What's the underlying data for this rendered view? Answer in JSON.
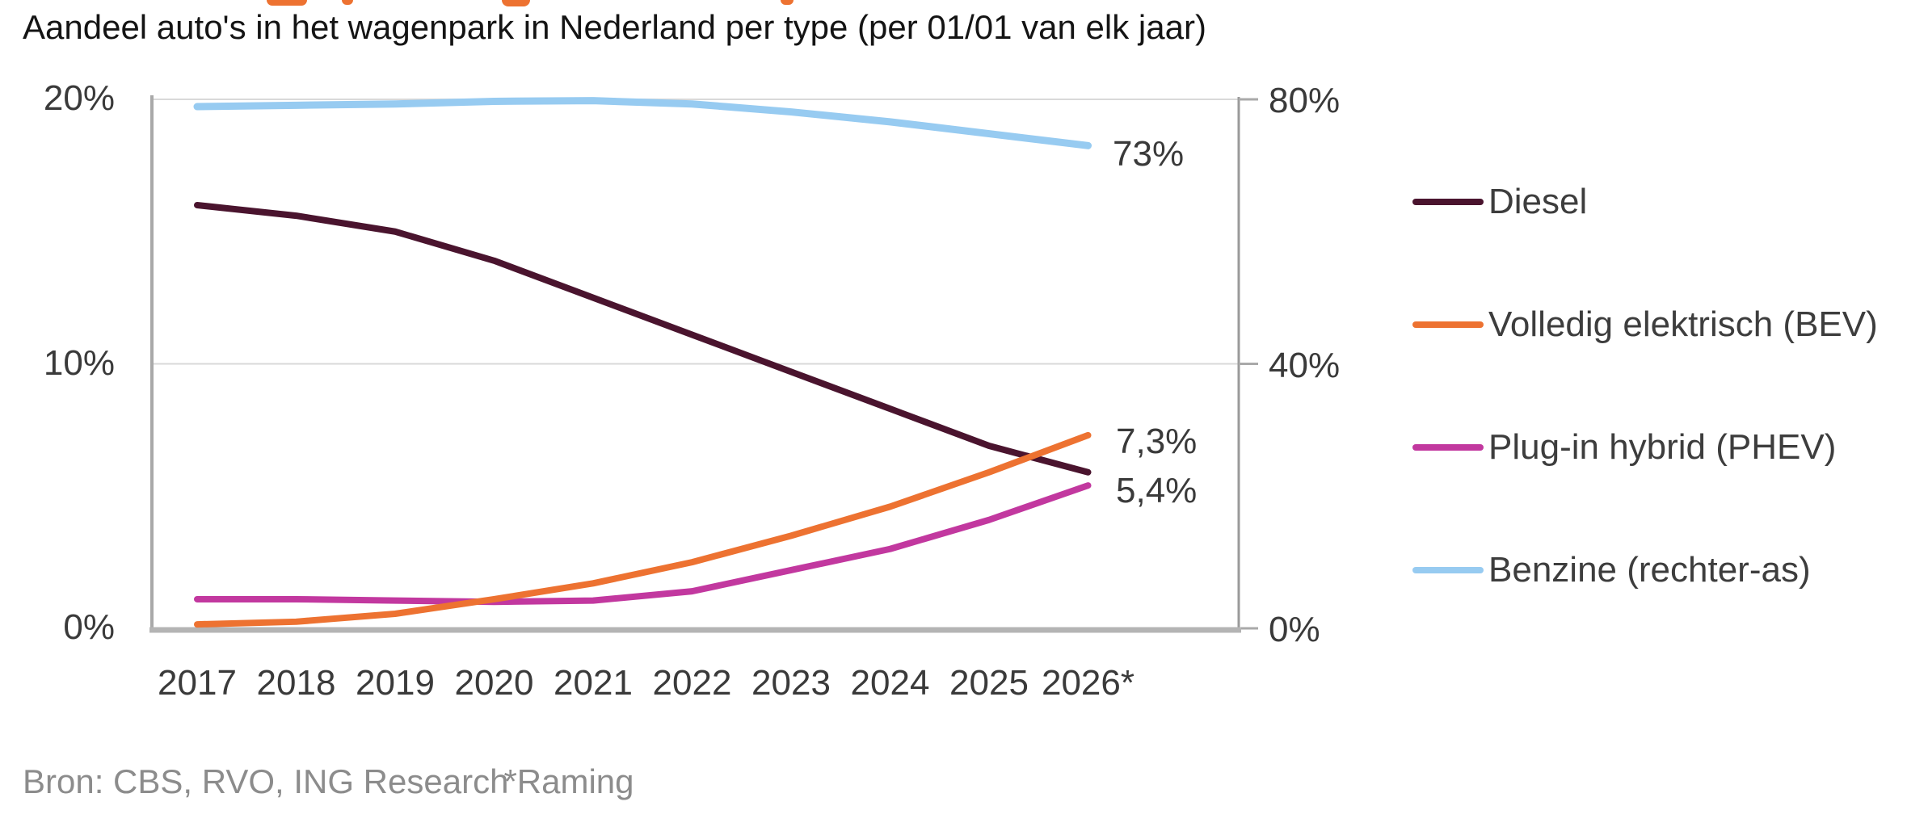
{
  "title": "Aandeel auto's in het wagenpark in Nederland per type (per 01/01 van elk jaar)",
  "source": {
    "text": "Bron: CBS, RVO, ING Research",
    "footnote": "*Raming"
  },
  "legend": {
    "items": [
      {
        "label": "Diesel",
        "color": "#4A142E"
      },
      {
        "label": "Volledig elektrisch (BEV)",
        "color": "#ED7231"
      },
      {
        "label": "Plug-in hybrid (PHEV)",
        "color": "#C2389F"
      },
      {
        "label": "Benzine (rechter-as)",
        "color": "#97CBF1"
      }
    ]
  },
  "annotations": {
    "benzine": "73%",
    "bev": "7,3%",
    "phev": "5,4%"
  },
  "chart_data": {
    "type": "line",
    "title": "Aandeel auto's in het wagenpark in Nederland per type (per 01/01 van elk jaar)",
    "x": [
      "2017",
      "2018",
      "2019",
      "2020",
      "2021",
      "2022",
      "2023",
      "2024",
      "2025",
      "2026*"
    ],
    "left_axis": {
      "min": 0,
      "max": 20,
      "ticks": [
        {
          "v": 20,
          "label": "20%"
        },
        {
          "v": 10,
          "label": "10%"
        },
        {
          "v": 0,
          "label": "0%"
        }
      ],
      "grid_at": [
        10
      ]
    },
    "right_axis": {
      "min": 0,
      "max": 80,
      "ticks": [
        {
          "v": 80,
          "label": "80%"
        },
        {
          "v": 40,
          "label": "40%"
        },
        {
          "v": 0,
          "label": "0%"
        }
      ]
    },
    "legend_position": "right",
    "series": [
      {
        "name": "Diesel",
        "axis": "left",
        "color": "#4A142E",
        "width": 8,
        "values": [
          16.0,
          15.6,
          15.0,
          13.9,
          12.5,
          11.1,
          9.7,
          8.3,
          6.9,
          5.9
        ]
      },
      {
        "name": "Volledig elektrisch (BEV)",
        "axis": "left",
        "color": "#ED7231",
        "width": 8,
        "values": [
          0.15,
          0.25,
          0.55,
          1.1,
          1.7,
          2.5,
          3.5,
          4.6,
          5.9,
          7.3
        ]
      },
      {
        "name": "Plug-in hybrid (PHEV)",
        "axis": "left",
        "color": "#C2389F",
        "width": 8,
        "values": [
          1.1,
          1.1,
          1.05,
          1.0,
          1.05,
          1.4,
          2.2,
          3.0,
          4.1,
          5.4
        ]
      },
      {
        "name": "Benzine (rechter-as)",
        "axis": "right",
        "color": "#97CBF1",
        "width": 9,
        "values": [
          78.9,
          79.1,
          79.3,
          79.7,
          79.8,
          79.3,
          78.1,
          76.6,
          74.8,
          73.0
        ]
      }
    ],
    "end_labels": [
      {
        "series": "Benzine (rechter-as)",
        "text": "73%"
      },
      {
        "series": "Volledig elektrisch (BEV)",
        "text": "7,3%"
      },
      {
        "series": "Plug-in hybrid (PHEV)",
        "text": "5,4%"
      }
    ]
  }
}
